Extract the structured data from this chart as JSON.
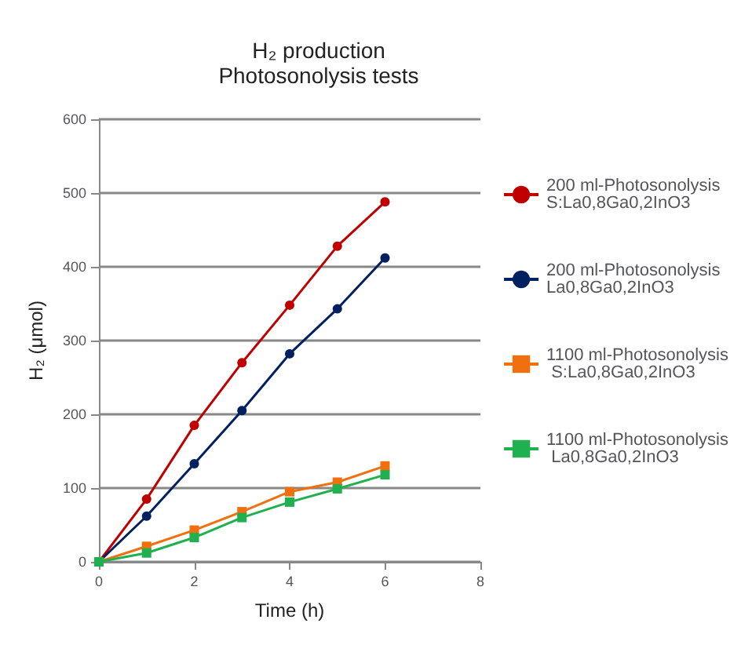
{
  "chart_data": {
    "type": "line",
    "title": "H₂ production",
    "subtitle": "Photosonolysis tests",
    "xlabel": "Time (h)",
    "ylabel": "H₂ (μmol)",
    "x": [
      0,
      1,
      2,
      3,
      4,
      5,
      6
    ],
    "xlim": [
      0,
      8
    ],
    "xticks": [
      0,
      2,
      4,
      6,
      8
    ],
    "ylim": [
      0,
      600
    ],
    "yticks": [
      0,
      100,
      200,
      300,
      400,
      500,
      600
    ],
    "grid": "y",
    "legend": "right",
    "line_style": "solid",
    "series": [
      {
        "name": "200 ml-Photosonolysis S:La0,8Ga0,2InO3",
        "color": "#c00000",
        "marker": "circle",
        "values": [
          0,
          85,
          185,
          270,
          348,
          428,
          488
        ]
      },
      {
        "name": "200 ml-Photosonolysis La0,8Ga0,2InO3",
        "color": "#002060",
        "marker": "circle",
        "values": [
          0,
          62,
          133,
          205,
          282,
          343,
          412
        ]
      },
      {
        "name": "1100 ml-Photosonolysis S:La0,8Ga0,2InO3",
        "color": "#f07010",
        "marker": "square",
        "values": [
          0,
          21,
          43,
          68,
          95,
          108,
          130
        ]
      },
      {
        "name": "1100 ml-Photosonolysis La0,8Ga0,2InO3",
        "color": "#20b050",
        "marker": "square",
        "values": [
          0,
          12,
          33,
          60,
          81,
          99,
          118
        ]
      }
    ]
  }
}
